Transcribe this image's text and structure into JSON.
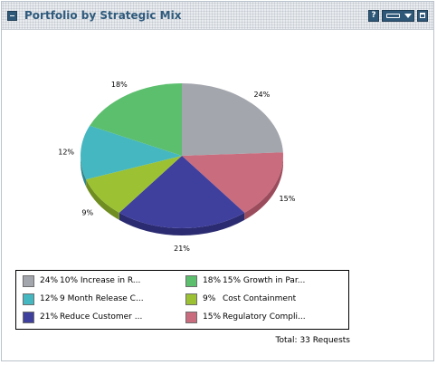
{
  "portlet": {
    "title": "Portfolio by Strategic Mix",
    "help_label": "?"
  },
  "chart_data": {
    "type": "pie",
    "slices": [
      {
        "label": "24%",
        "legend_pct": "24%",
        "legend_text": "10% Increase in R...",
        "value": 24,
        "color": "#a3a6ad",
        "side": "#7d8086"
      },
      {
        "label": "15%",
        "legend_pct": "15%",
        "legend_text": "Regulatory Compli...",
        "value": 15,
        "color": "#c96c7e",
        "side": "#9b4c5c"
      },
      {
        "label": "21%",
        "legend_pct": "21%",
        "legend_text": "Reduce Customer ...",
        "value": 21,
        "color": "#3f3f9e",
        "side": "#2b2b72"
      },
      {
        "label": "9%",
        "legend_pct": "9%",
        "legend_text": "Cost Containment",
        "value": 9,
        "color": "#9cc233",
        "side": "#6f8d20"
      },
      {
        "label": "12%",
        "legend_pct": "12%",
        "legend_text": "9 Month Release C...",
        "value": 12,
        "color": "#45b7c0",
        "side": "#2f858c"
      },
      {
        "label": "18%",
        "legend_pct": "18%",
        "legend_text": "15% Growth in Par...",
        "value": 18,
        "color": "#5cbf6e",
        "side": "#3f8d4e"
      }
    ],
    "legend_placement": "bottom-left"
  },
  "legend_order": [
    0,
    5,
    4,
    3,
    2,
    1
  ],
  "footer": {
    "total_label": "Total:",
    "total_value": "33 Requests"
  }
}
